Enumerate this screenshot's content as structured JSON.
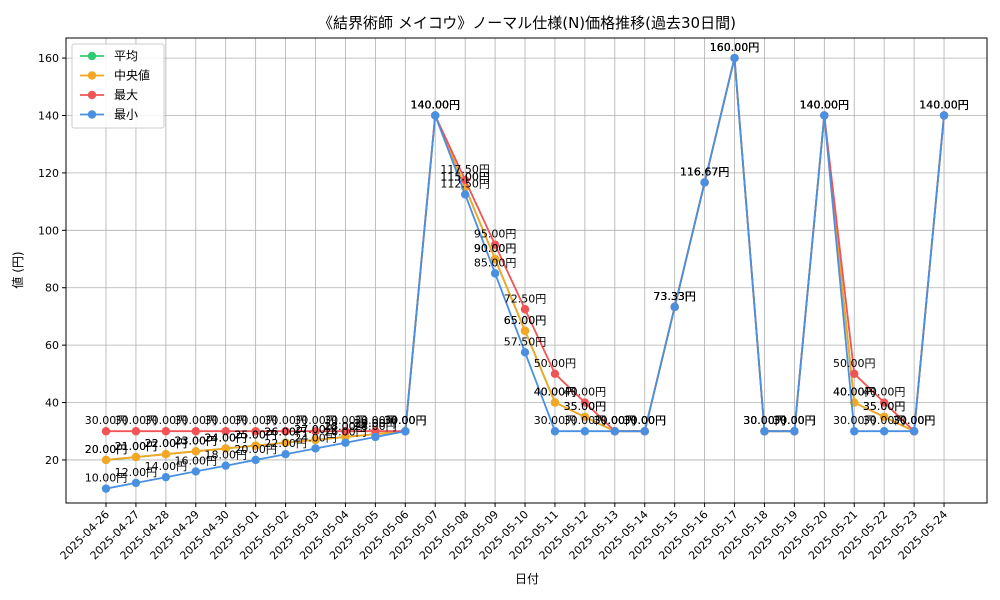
{
  "chart_data": {
    "type": "line",
    "title": "《結界術師 メイコウ》ノーマル仕様(N)価格推移(過去30日間)",
    "xlabel": "日付",
    "ylabel": "値 (円)",
    "ylim": [
      5,
      167
    ],
    "yticks": [
      20,
      40,
      60,
      80,
      100,
      120,
      140,
      160
    ],
    "grid": true,
    "legend_position": "top-left",
    "unit_suffix": "円",
    "categories": [
      "2025-04-26",
      "2025-04-27",
      "2025-04-28",
      "2025-04-29",
      "2025-04-30",
      "2025-05-01",
      "2025-05-02",
      "2025-05-03",
      "2025-05-04",
      "2025-05-05",
      "2025-05-06",
      "2025-05-07",
      "2025-05-08",
      "2025-05-09",
      "2025-05-10",
      "2025-05-11",
      "2025-05-12",
      "2025-05-13",
      "2025-05-14",
      "2025-05-15",
      "2025-05-16",
      "2025-05-17",
      "2025-05-18",
      "2025-05-19",
      "2025-05-20",
      "2025-05-21",
      "2025-05-22",
      "2025-05-23",
      "2025-05-24"
    ],
    "series": [
      {
        "name": "平均",
        "color": "#2ecc71",
        "values": [
          20,
          21,
          22,
          23,
          24,
          25,
          26,
          27,
          28,
          29,
          30,
          140,
          115,
          90,
          65,
          40,
          35,
          30,
          30,
          73.33,
          116.67,
          160,
          30,
          30,
          140,
          40,
          35,
          30,
          140
        ]
      },
      {
        "name": "中央値",
        "color": "#f5a623",
        "values": [
          20,
          21,
          22,
          23,
          24,
          25,
          26,
          27,
          28,
          29,
          30,
          140,
          115,
          90,
          65,
          40,
          35,
          30,
          30,
          73.33,
          116.67,
          160,
          30,
          30,
          140,
          40,
          35,
          30,
          140
        ]
      },
      {
        "name": "最大",
        "color": "#f05454",
        "values": [
          30,
          30,
          30,
          30,
          30,
          30,
          30,
          30,
          30,
          30,
          30,
          140,
          117.5,
          95,
          72.5,
          50,
          40,
          30,
          30,
          73.33,
          116.67,
          160,
          30,
          30,
          140,
          50,
          40,
          30,
          140
        ]
      },
      {
        "name": "最小",
        "color": "#4a90e2",
        "values": [
          10,
          12,
          14,
          16,
          18,
          20,
          22,
          24,
          26,
          28,
          30,
          140,
          112.5,
          85,
          57.5,
          30,
          30,
          30,
          30,
          73.33,
          116.67,
          160,
          30,
          30,
          140,
          30,
          30,
          30,
          140
        ]
      }
    ]
  }
}
